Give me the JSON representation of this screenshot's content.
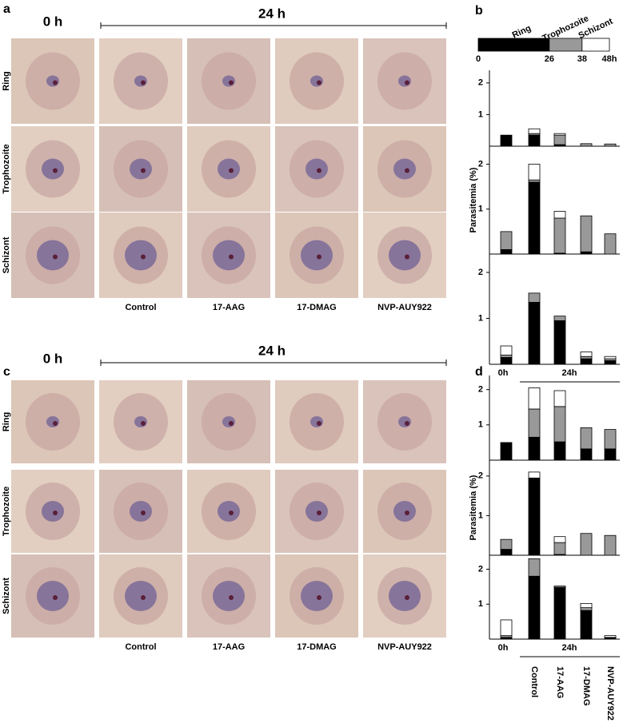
{
  "panel_labels": [
    "a",
    "b",
    "c",
    "d"
  ],
  "micrographs": [
    {
      "time_labels": [
        "0 h",
        "24 h"
      ],
      "rows": [
        "Ring",
        "Trophozoite",
        "Schizont"
      ],
      "columns": [
        "Control",
        "17-AAG",
        "17-DMAG",
        "NVP-AUY922"
      ]
    },
    {
      "time_labels": [
        "0 h",
        "24 h"
      ],
      "rows": [
        "Ring",
        "Trophozoite",
        "Schizont"
      ],
      "columns": [
        "Control",
        "17-AAG",
        "17-DMAG",
        "NVP-AUY922"
      ]
    }
  ],
  "timeline": {
    "stages": [
      {
        "name": "Ring",
        "start": 0,
        "end": 26,
        "color": "#000000"
      },
      {
        "name": "Trophozoite",
        "start": 26,
        "end": 38,
        "color": "#999999"
      },
      {
        "name": "Schizont",
        "start": 38,
        "end": 48,
        "color": "#ffffff"
      }
    ],
    "xlim": [
      0,
      48
    ],
    "xticks": [
      0,
      26,
      38,
      {
        "value": 48,
        "label": "48h"
      }
    ]
  },
  "chart_data": [
    {
      "type": "bar",
      "stacked": true,
      "categories": [
        null,
        null,
        null,
        null,
        null
      ],
      "ylim": [
        0,
        2.4
      ],
      "yticks": [
        1,
        2
      ],
      "series": [
        {
          "color": "#000000",
          "values": [
            0.35,
            0.35,
            0.05,
            0,
            0
          ]
        },
        {
          "color": "#999999",
          "values": [
            0,
            0.05,
            0.3,
            0.08,
            0.07
          ]
        },
        {
          "color": "#ffffff",
          "values": [
            0,
            0.15,
            0.05,
            0,
            0
          ]
        }
      ]
    },
    {
      "type": "bar",
      "stacked": true,
      "ylabel": "Parasitemia (%)",
      "categories": [
        null,
        null,
        null,
        null,
        null
      ],
      "ylim": [
        0,
        2.4
      ],
      "yticks": [
        1,
        2
      ],
      "series": [
        {
          "color": "#000000",
          "values": [
            0.1,
            1.6,
            0.02,
            0.05,
            0
          ]
        },
        {
          "color": "#999999",
          "values": [
            0.4,
            0.05,
            0.78,
            0.8,
            0.45
          ]
        },
        {
          "color": "#ffffff",
          "values": [
            0,
            0.35,
            0.15,
            0,
            0
          ]
        }
      ]
    },
    {
      "type": "bar",
      "stacked": true,
      "categories": [
        "0h",
        null,
        null,
        null,
        null
      ],
      "group_label": "24h",
      "ylim": [
        0,
        2.4
      ],
      "yticks": [
        1,
        2
      ],
      "series": [
        {
          "color": "#000000",
          "values": [
            0.15,
            1.35,
            0.95,
            0.12,
            0.08
          ]
        },
        {
          "color": "#999999",
          "values": [
            0.05,
            0.2,
            0.1,
            0.05,
            0.04
          ]
        },
        {
          "color": "#ffffff",
          "values": [
            0.2,
            0,
            0,
            0.1,
            0.05
          ]
        }
      ]
    },
    {
      "type": "bar",
      "stacked": true,
      "categories": [
        null,
        null,
        null,
        null,
        null
      ],
      "ylim": [
        0,
        2.4
      ],
      "yticks": [
        1,
        2
      ],
      "series": [
        {
          "color": "#000000",
          "values": [
            0.5,
            0.65,
            0.52,
            0.32,
            0.32
          ]
        },
        {
          "color": "#999999",
          "values": [
            0,
            0.8,
            1.0,
            0.6,
            0.55
          ]
        },
        {
          "color": "#ffffff",
          "values": [
            0,
            0.6,
            0.45,
            0,
            0
          ]
        }
      ]
    },
    {
      "type": "bar",
      "stacked": true,
      "ylabel": "Parasitemia (%)",
      "categories": [
        null,
        null,
        null,
        null,
        null
      ],
      "ylim": [
        0,
        2.4
      ],
      "yticks": [
        1,
        2
      ],
      "series": [
        {
          "color": "#000000",
          "values": [
            0.15,
            1.95,
            0.02,
            0,
            0
          ]
        },
        {
          "color": "#999999",
          "values": [
            0.25,
            0,
            0.3,
            0.55,
            0.5
          ]
        },
        {
          "color": "#ffffff",
          "values": [
            0,
            0.15,
            0.15,
            0,
            0
          ]
        }
      ]
    },
    {
      "type": "bar",
      "stacked": true,
      "categories": [
        "0h",
        "Control",
        "17-AAG",
        "17-DMAG",
        "NVP-AUY922"
      ],
      "group_label": "24h",
      "ylim": [
        0,
        2.4
      ],
      "yticks": [
        1,
        2
      ],
      "series": [
        {
          "color": "#000000",
          "values": [
            0.05,
            1.8,
            1.48,
            0.82,
            0.05
          ]
        },
        {
          "color": "#999999",
          "values": [
            0.05,
            0.5,
            0.04,
            0.08,
            0
          ]
        },
        {
          "color": "#ffffff",
          "values": [
            0.45,
            0,
            0,
            0.12,
            0.05
          ]
        }
      ]
    }
  ]
}
